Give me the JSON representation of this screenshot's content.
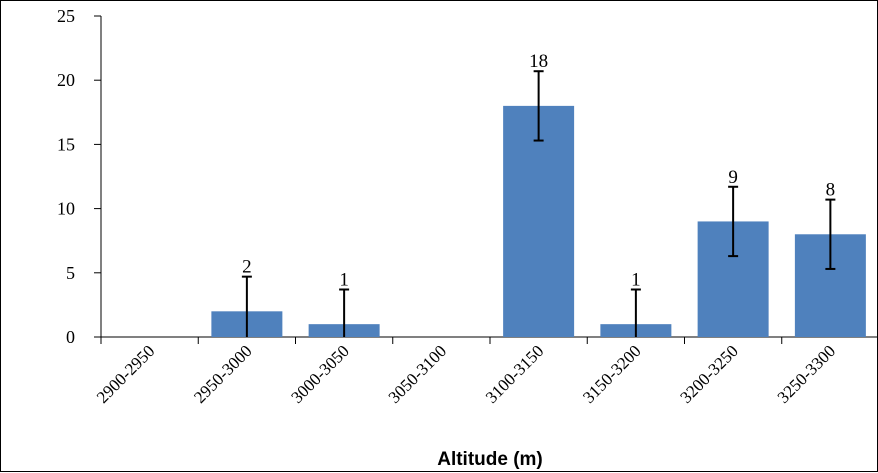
{
  "chart_data": {
    "type": "bar",
    "title": "",
    "xlabel": "Altitude (m)",
    "ylabel": "",
    "ylim": [
      0,
      25
    ],
    "yticks": [
      0,
      5,
      10,
      15,
      20,
      25
    ],
    "grid": false,
    "legend": "none",
    "categories": [
      "2900-2950",
      "2950-3000",
      "3000-3050",
      "3050-3100",
      "3100-3150",
      "3150-3200",
      "3200-3250",
      "3250-3300"
    ],
    "values": [
      0,
      2,
      1,
      0,
      18,
      1,
      9,
      8
    ],
    "data_labels": [
      "",
      "2",
      "1",
      "",
      "18",
      "1",
      "9",
      "8"
    ],
    "error_bars": [
      null,
      2.7,
      2.7,
      null,
      2.7,
      2.7,
      2.7,
      2.7
    ],
    "colors": {
      "bar": "#4F81BD",
      "axis": "#000000",
      "error": "#000000"
    }
  }
}
